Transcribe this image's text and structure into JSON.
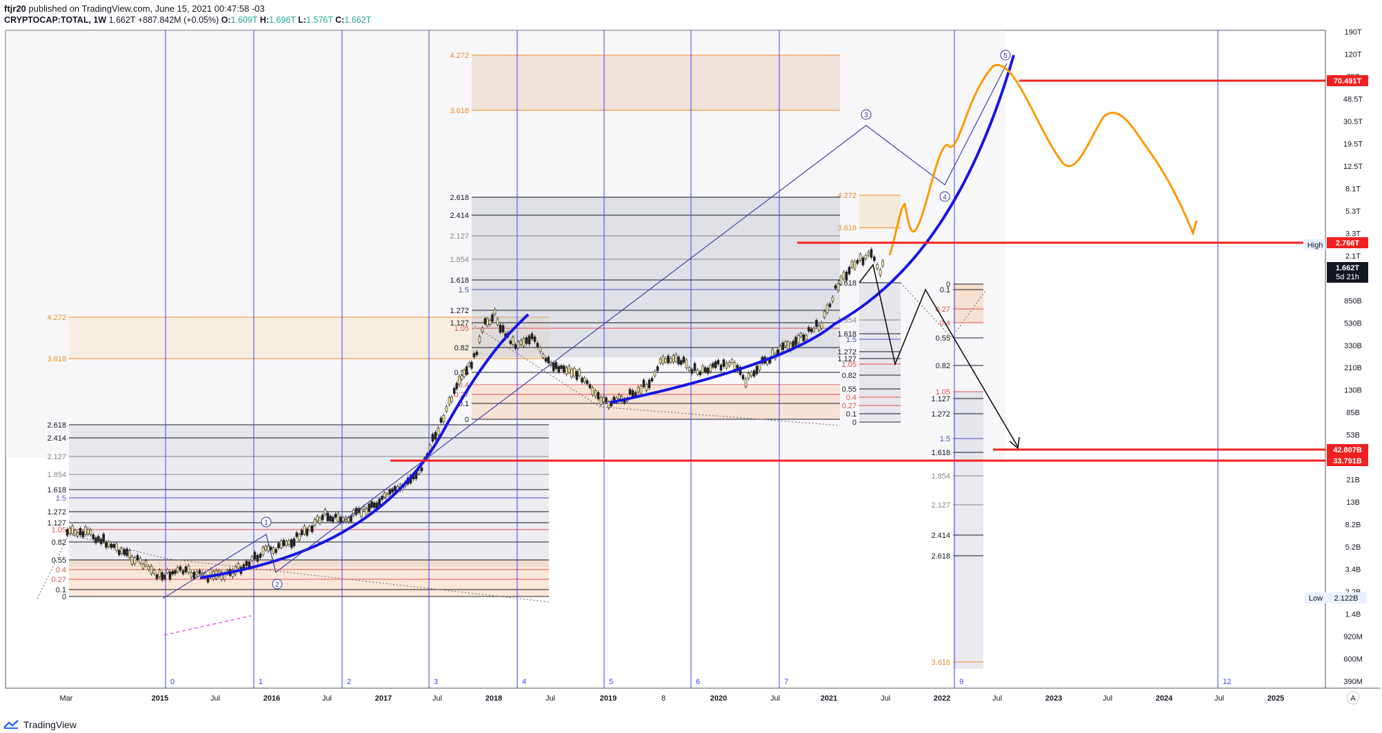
{
  "header": {
    "publisher": "ftjr20",
    "published_text": "published on TradingView.com, June 15, 2021 00:47:58 -03",
    "symbol": "CRYPTOCAP:TOTAL, 1W",
    "last": "1.662T",
    "change": "+887.842M (+0.05%)",
    "o_label": "O:",
    "o": "1.609T",
    "h_label": "H:",
    "h": "1.696T",
    "l_label": "L:",
    "l": "1.576T",
    "c_label": "C:",
    "c": "1.662T"
  },
  "price_axis": {
    "labels": [
      "190T",
      "120T",
      "75T",
      "48.5T",
      "30.5T",
      "19.5T",
      "12.5T",
      "8.1T",
      "5.3T",
      "3.3T",
      "2.1T",
      "1.3T",
      "850B",
      "530B",
      "330B",
      "210B",
      "130B",
      "85B",
      "53B",
      "34B",
      "21B",
      "13B",
      "8.2B",
      "5.2B",
      "3.4B",
      "2.2B",
      "1.4B",
      "920M",
      "600M",
      "390M"
    ]
  },
  "time_axis": {
    "labels": [
      "Mar",
      "2015",
      "Jul",
      "2016",
      "Jul",
      "2017",
      "Jul",
      "2018",
      "Jul",
      "2019",
      "8",
      "2020",
      "Jul",
      "2021",
      "Jul",
      "2022",
      "Jul",
      "2023",
      "Jul",
      "2024",
      "Jul",
      "2025"
    ]
  },
  "cycle_labels": [
    "0",
    "1",
    "2",
    "3",
    "4",
    "5",
    "6",
    "7",
    "9",
    "12"
  ],
  "fib_levels_a": [
    "4.272",
    "3.618",
    "2.618",
    "2.414",
    "2.127",
    "1.854",
    "1.618",
    "1.5",
    "1.272",
    "1.127",
    "1.05",
    "0.82",
    "0.55",
    "0.4",
    "0.27",
    "0.1",
    "0"
  ],
  "fib_levels_b": [
    "4.272",
    "3.618",
    "2.618",
    "2.414",
    "2.127",
    "1.854",
    "1.618",
    "1.5",
    "1.272",
    "1.127",
    "1.05",
    "0.82",
    "0.55",
    "0.4",
    "0.27",
    "0.1",
    "0"
  ],
  "fib_levels_c": [
    "4.272",
    "3.618",
    "2.618",
    "1.854",
    "1.618",
    "1.5",
    "1.272",
    "1.127",
    "1.05",
    "0.82",
    "0.55",
    "0.4",
    "0.27",
    "0.1",
    "0"
  ],
  "fib_levels_d": [
    "0",
    "0.1",
    "0.27",
    "0.4",
    "0.55",
    "0.82",
    "1.05",
    "1.127",
    "1.272",
    "1.5",
    "1.618",
    "1.854",
    "2.127",
    "2.414",
    "2.618",
    "3.618"
  ],
  "wave_labels": [
    "1",
    "2",
    "3",
    "4",
    "5"
  ],
  "price_tags": {
    "t1": "70.491T",
    "t2": "2.766T",
    "current": "1.662T",
    "countdown": "5d 21h",
    "t3": "42.807B",
    "t4": "33.791B",
    "high_label": "High",
    "low_label": "Low",
    "low_value": "2.122B"
  },
  "auto_scale": "A",
  "footer": {
    "brand": "TradingView"
  },
  "colors": {
    "blue_curve": "#1515e6",
    "orange_path": "#ff9800",
    "red_line": "#f02020",
    "cycle_line": "#3d3dff",
    "fib_orange": "#ef8a2c",
    "fib_red": "#e05050"
  }
}
